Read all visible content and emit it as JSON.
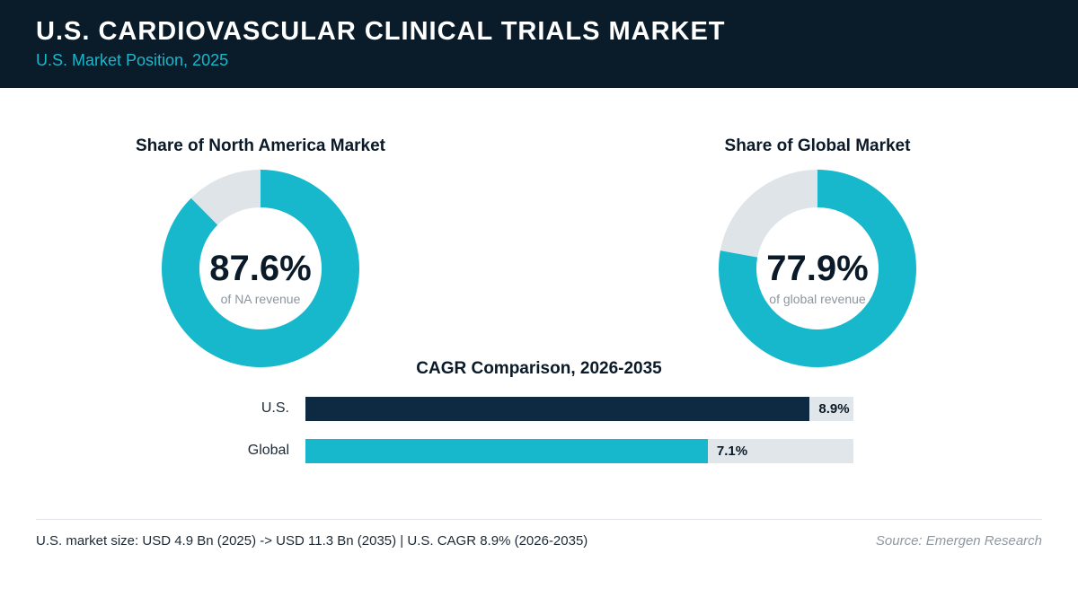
{
  "header": {
    "title": "U.S. CARDIOVASCULAR CLINICAL TRIALS MARKET",
    "subtitle": "U.S. Market Position, 2025"
  },
  "colors": {
    "header_bg": "#0a1b29",
    "accent": "#17b8cc",
    "dark_bar": "#0e2a42",
    "track": "#e1e6ea"
  },
  "chart_data": [
    {
      "type": "pie",
      "title": "Share of North America Market",
      "value_percent": 87.6,
      "value_label": "87.6%",
      "caption": "of NA revenue"
    },
    {
      "type": "pie",
      "title": "Share of Global Market",
      "value_percent": 77.9,
      "value_label": "77.9%",
      "caption": "of global revenue"
    },
    {
      "type": "bar",
      "title": "CAGR Comparison, 2026-2035",
      "categories": [
        "U.S.",
        "Global"
      ],
      "values": [
        8.9,
        7.1
      ],
      "value_labels": [
        "8.9%",
        "7.1%"
      ],
      "xlim": [
        0,
        9.67
      ]
    }
  ],
  "footer": {
    "note": "U.S. market size: USD 4.9 Bn (2025) -> USD 11.3 Bn (2035)  |  U.S. CAGR 8.9% (2026-2035)",
    "source": "Source: Emergen Research"
  }
}
